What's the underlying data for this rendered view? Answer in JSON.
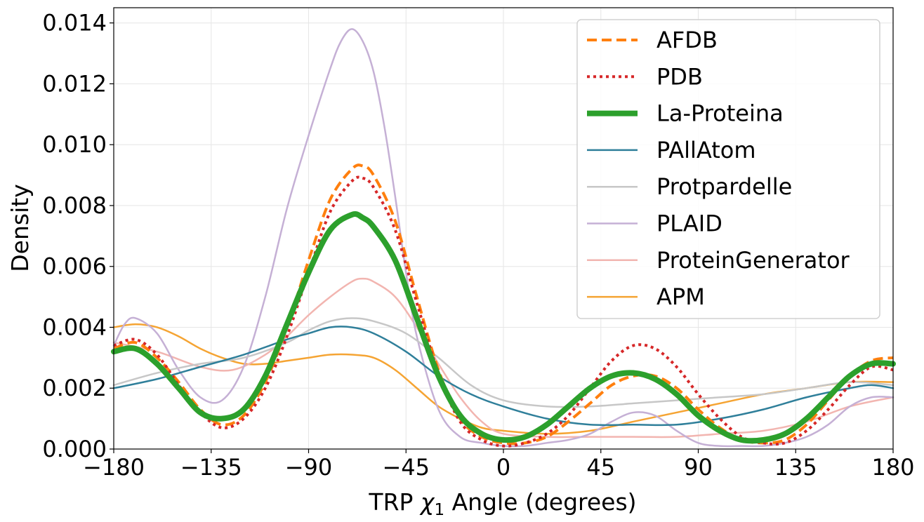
{
  "chart_data": {
    "type": "line",
    "xlabel": "TRP χ₁ Angle (degrees)",
    "xlabel_parts": {
      "pre": "TRP ",
      "symbol": "χ",
      "sub": "1",
      "post": " Angle (degrees)"
    },
    "ylabel": "Density",
    "xlim": [
      -180,
      180
    ],
    "ylim": [
      0,
      0.0145
    ],
    "xticks": [
      -180,
      -135,
      -90,
      -45,
      0,
      45,
      90,
      135,
      180
    ],
    "xtick_labels": [
      "−180",
      "−135",
      "−90",
      "−45",
      "0",
      "45",
      "90",
      "135",
      "180"
    ],
    "yticks": [
      0,
      0.002,
      0.004,
      0.006,
      0.008,
      0.01,
      0.012,
      0.014
    ],
    "ytick_labels": [
      "0.000",
      "0.002",
      "0.004",
      "0.006",
      "0.008",
      "0.010",
      "0.012",
      "0.014"
    ],
    "grid": true,
    "legend_position": "top-right",
    "series": [
      {
        "name": "AFDB",
        "color": "#ff7f0e",
        "style": "dashed",
        "x": [
          -180,
          -170,
          -160,
          -150,
          -140,
          -130,
          -120,
          -110,
          -100,
          -90,
          -80,
          -70,
          -65,
          -60,
          -50,
          -40,
          -30,
          -20,
          -10,
          0,
          10,
          20,
          30,
          40,
          50,
          60,
          70,
          80,
          90,
          100,
          110,
          120,
          130,
          140,
          150,
          160,
          170,
          180
        ],
        "y": [
          0.0033,
          0.0035,
          0.003,
          0.0022,
          0.0013,
          0.0008,
          0.0011,
          0.0022,
          0.004,
          0.0062,
          0.0082,
          0.0092,
          0.0093,
          0.009,
          0.0075,
          0.005,
          0.0026,
          0.001,
          0.0004,
          0.0002,
          0.0002,
          0.0004,
          0.0009,
          0.0015,
          0.0021,
          0.0024,
          0.0024,
          0.002,
          0.0013,
          0.0007,
          0.0003,
          0.0002,
          0.0003,
          0.0008,
          0.0016,
          0.0024,
          0.0029,
          0.003
        ]
      },
      {
        "name": "PDB",
        "color": "#d62728",
        "style": "dotted",
        "x": [
          -180,
          -170,
          -160,
          -150,
          -140,
          -130,
          -120,
          -110,
          -100,
          -90,
          -80,
          -70,
          -65,
          -60,
          -50,
          -40,
          -30,
          -20,
          -10,
          0,
          10,
          20,
          30,
          40,
          50,
          60,
          70,
          80,
          90,
          100,
          110,
          120,
          130,
          140,
          150,
          160,
          170,
          180
        ],
        "y": [
          0.0034,
          0.0036,
          0.0031,
          0.0021,
          0.0012,
          0.0007,
          0.001,
          0.002,
          0.0037,
          0.0058,
          0.0078,
          0.0088,
          0.0089,
          0.0086,
          0.0072,
          0.0048,
          0.0025,
          0.0009,
          0.0003,
          0.0001,
          0.0002,
          0.0005,
          0.0011,
          0.002,
          0.0029,
          0.0034,
          0.0033,
          0.0027,
          0.0018,
          0.001,
          0.0004,
          0.0002,
          0.0002,
          0.0006,
          0.0013,
          0.0021,
          0.0027,
          0.0026
        ]
      },
      {
        "name": "La-Proteina",
        "color": "#2ca02c",
        "style": "thick",
        "x": [
          -180,
          -170,
          -160,
          -150,
          -140,
          -130,
          -120,
          -110,
          -100,
          -90,
          -80,
          -70,
          -65,
          -60,
          -50,
          -40,
          -30,
          -20,
          -10,
          0,
          10,
          20,
          30,
          40,
          50,
          60,
          70,
          80,
          90,
          100,
          110,
          120,
          130,
          140,
          150,
          160,
          170,
          180
        ],
        "y": [
          0.0032,
          0.0033,
          0.0028,
          0.002,
          0.0012,
          0.001,
          0.0013,
          0.0024,
          0.0041,
          0.0058,
          0.0072,
          0.0077,
          0.0076,
          0.0073,
          0.0062,
          0.0043,
          0.0024,
          0.0011,
          0.0005,
          0.0003,
          0.0004,
          0.0008,
          0.0014,
          0.002,
          0.0024,
          0.0025,
          0.0023,
          0.0018,
          0.0011,
          0.0006,
          0.0003,
          0.0003,
          0.0005,
          0.001,
          0.0017,
          0.0024,
          0.0028,
          0.0028
        ]
      },
      {
        "name": "PAllAtom",
        "color": "#2f7f9a",
        "style": "solid",
        "x": [
          -180,
          -160,
          -140,
          -120,
          -100,
          -90,
          -80,
          -70,
          -60,
          -45,
          -30,
          -15,
          0,
          20,
          40,
          60,
          80,
          100,
          120,
          140,
          160,
          170,
          180
        ],
        "y": [
          0.002,
          0.0023,
          0.0027,
          0.0031,
          0.0036,
          0.0038,
          0.004,
          0.004,
          0.0038,
          0.0032,
          0.0024,
          0.0018,
          0.0014,
          0.001,
          0.0008,
          0.0008,
          0.0008,
          0.001,
          0.0013,
          0.0017,
          0.002,
          0.0021,
          0.002
        ]
      },
      {
        "name": "Protpardelle",
        "color": "#c7c7c7",
        "style": "solid",
        "x": [
          -180,
          -160,
          -140,
          -120,
          -100,
          -90,
          -80,
          -70,
          -60,
          -45,
          -30,
          -15,
          0,
          20,
          40,
          60,
          80,
          100,
          120,
          140,
          160,
          180
        ],
        "y": [
          0.0021,
          0.0025,
          0.0028,
          0.003,
          0.0035,
          0.0039,
          0.0042,
          0.0043,
          0.0042,
          0.0038,
          0.003,
          0.0021,
          0.0016,
          0.0014,
          0.0014,
          0.0015,
          0.0016,
          0.0017,
          0.0018,
          0.002,
          0.0022,
          0.0021
        ]
      },
      {
        "name": "PLAID",
        "color": "#c5b0d5",
        "style": "solid",
        "x": [
          -180,
          -175,
          -170,
          -160,
          -150,
          -140,
          -130,
          -120,
          -110,
          -100,
          -90,
          -80,
          -75,
          -70,
          -65,
          -60,
          -55,
          -50,
          -45,
          -40,
          -30,
          -20,
          -10,
          0,
          10,
          20,
          30,
          40,
          50,
          60,
          70,
          80,
          90,
          100,
          110,
          120,
          130,
          140,
          150,
          160,
          170,
          180
        ],
        "y": [
          0.0034,
          0.0041,
          0.0043,
          0.0038,
          0.0026,
          0.0017,
          0.0016,
          0.0027,
          0.005,
          0.0079,
          0.0103,
          0.0125,
          0.0134,
          0.0138,
          0.0134,
          0.0124,
          0.0106,
          0.0083,
          0.0058,
          0.0037,
          0.0013,
          0.0004,
          0.0002,
          0.0001,
          0.0001,
          0.0002,
          0.0003,
          0.0005,
          0.0009,
          0.0012,
          0.0011,
          0.0006,
          0.0002,
          0.0001,
          0.0001,
          0.0001,
          0.0002,
          0.0004,
          0.0008,
          0.0014,
          0.0017,
          0.0017
        ]
      },
      {
        "name": "ProteinGenerator",
        "color": "#f2b5b0",
        "style": "solid",
        "x": [
          -180,
          -160,
          -140,
          -125,
          -110,
          -100,
          -90,
          -80,
          -70,
          -65,
          -60,
          -50,
          -40,
          -30,
          -20,
          -10,
          0,
          20,
          40,
          60,
          80,
          100,
          120,
          140,
          160,
          180
        ],
        "y": [
          0.0035,
          0.0032,
          0.0027,
          0.0026,
          0.0031,
          0.0037,
          0.0044,
          0.005,
          0.0055,
          0.0056,
          0.0055,
          0.005,
          0.004,
          0.0028,
          0.0017,
          0.0009,
          0.0005,
          0.0004,
          0.0004,
          0.0004,
          0.0004,
          0.0005,
          0.0006,
          0.0009,
          0.0014,
          0.0017
        ]
      },
      {
        "name": "APM",
        "color": "#f5a433",
        "style": "solid",
        "x": [
          -180,
          -170,
          -160,
          -150,
          -140,
          -130,
          -120,
          -110,
          -100,
          -90,
          -80,
          -70,
          -60,
          -50,
          -40,
          -30,
          -20,
          -10,
          0,
          20,
          40,
          60,
          80,
          100,
          120,
          140,
          160,
          180
        ],
        "y": [
          0.004,
          0.0041,
          0.004,
          0.0037,
          0.0033,
          0.003,
          0.0028,
          0.0028,
          0.0029,
          0.003,
          0.0031,
          0.0031,
          0.003,
          0.0026,
          0.002,
          0.0014,
          0.001,
          0.0007,
          0.0006,
          0.0005,
          0.0006,
          0.0009,
          0.0012,
          0.0015,
          0.0018,
          0.002,
          0.0022,
          0.0022
        ]
      }
    ]
  }
}
